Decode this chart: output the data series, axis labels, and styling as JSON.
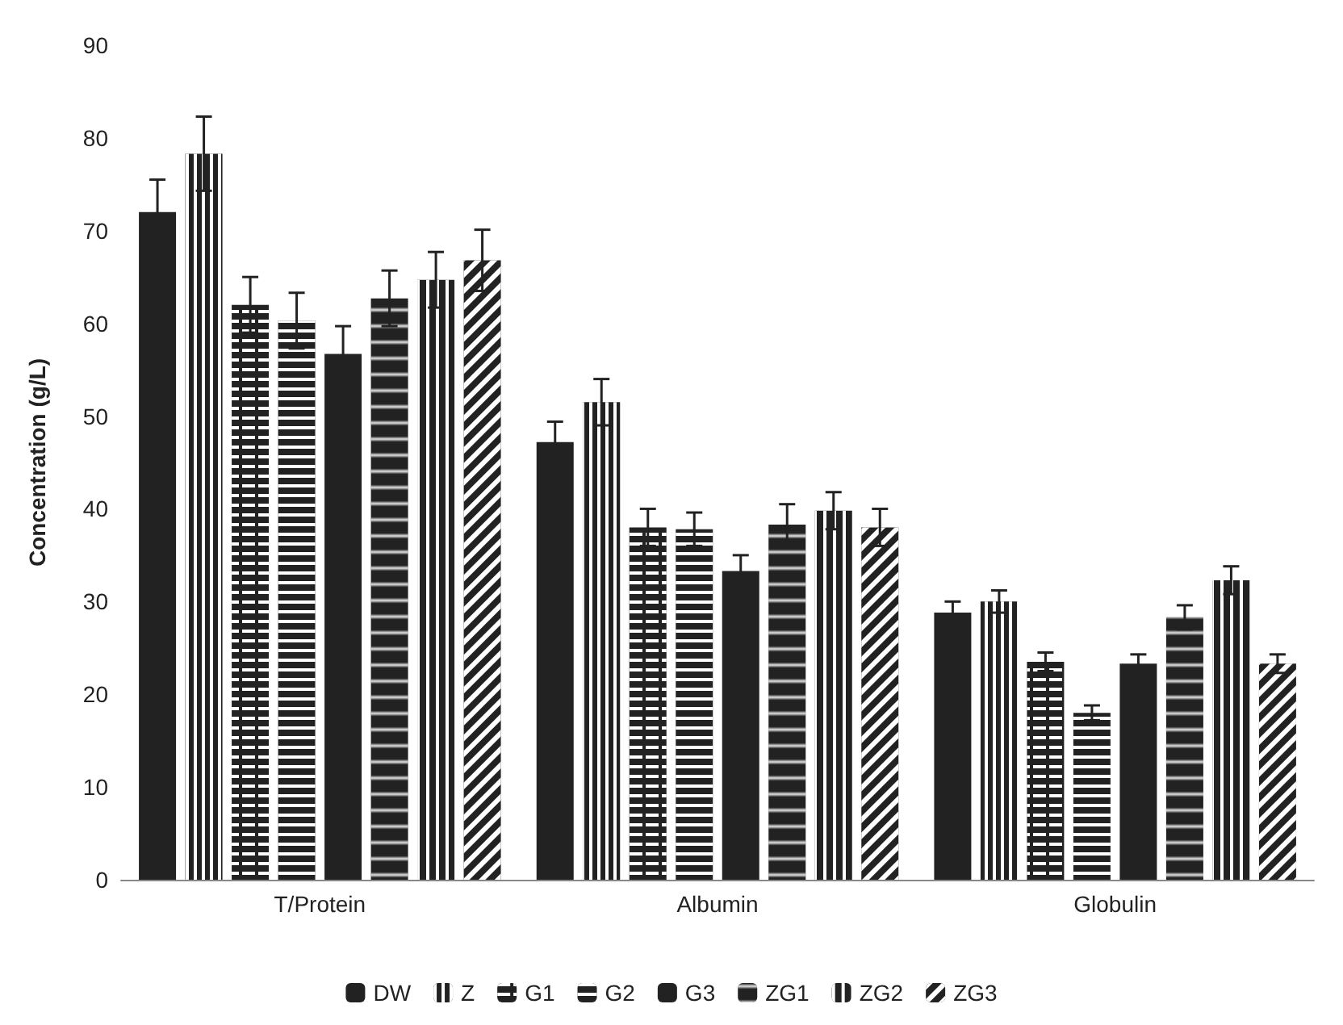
{
  "chart_data": {
    "type": "bar",
    "ylabel": "Concentration (g/L)",
    "categories": [
      "T/Protein",
      "Albumin",
      "Globulin"
    ],
    "series": [
      {
        "name": "DW",
        "color": "#222222",
        "values": [
          72,
          47.2,
          28.8
        ],
        "errors": [
          3.5,
          2.2,
          1.2
        ]
      },
      {
        "name": "Z",
        "color": "#222222",
        "values": [
          78.3,
          51.5,
          30
        ],
        "errors": [
          4,
          2.5,
          1.2
        ]
      },
      {
        "name": "G1",
        "color": "#222222",
        "values": [
          62,
          38,
          23.5
        ],
        "errors": [
          3,
          2,
          1
        ]
      },
      {
        "name": "G2",
        "color": "#222222",
        "values": [
          60.3,
          37.8,
          18
        ],
        "errors": [
          3,
          1.8,
          0.8
        ]
      },
      {
        "name": "G3",
        "color": "#222222",
        "values": [
          56.7,
          33.3,
          23.3
        ],
        "errors": [
          3,
          1.7,
          1
        ]
      },
      {
        "name": "ZG1",
        "color": "#222222",
        "values": [
          62.7,
          38.3,
          28.3
        ],
        "errors": [
          3,
          2.2,
          1.3
        ]
      },
      {
        "name": "ZG2",
        "color": "#222222",
        "values": [
          64.7,
          39.8,
          32.3
        ],
        "errors": [
          3,
          2,
          1.5
        ]
      },
      {
        "name": "ZG3",
        "color": "#222222",
        "values": [
          66.8,
          38,
          23.3
        ],
        "errors": [
          3.3,
          2,
          1
        ]
      }
    ],
    "ylim": [
      0,
      90
    ],
    "yticks": [
      0,
      10,
      20,
      30,
      40,
      50,
      60,
      70,
      80,
      90
    ],
    "grid": false,
    "legend": "bottom"
  }
}
